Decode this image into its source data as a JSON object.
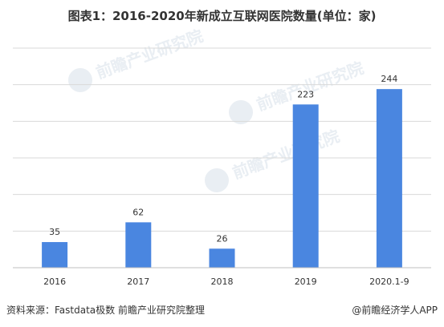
{
  "title": "图表1：2016-2020年新成立互联网医院数量(单位：家)",
  "watermark": "前瞻产业研究院",
  "source": "资料来源：Fastdata极数 前瞻产业研究院整理",
  "credit": "@前瞻经济学人APP",
  "colors": {
    "bar": "#4A86E0",
    "grid": "#d9d9d9",
    "axis": "#bfbfbf"
  },
  "chart_data": {
    "type": "bar",
    "categories": [
      "2016",
      "2017",
      "2018",
      "2019",
      "2020.1-9"
    ],
    "values": [
      35,
      62,
      26,
      223,
      244
    ],
    "ylim": [
      0,
      300
    ],
    "grid": true,
    "data_labels": true
  }
}
